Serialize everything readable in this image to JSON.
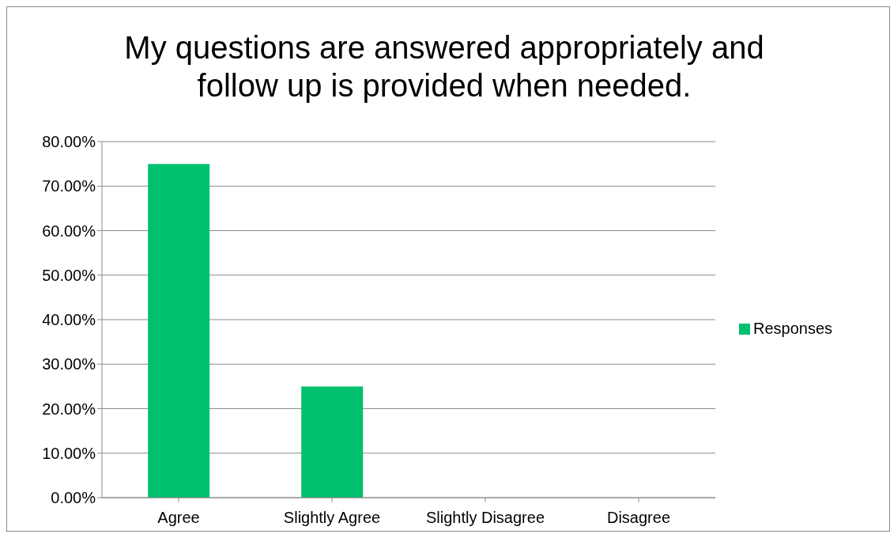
{
  "chart_data": {
    "type": "bar",
    "title": "My questions are answered appropriately and follow up is provided when needed.",
    "categories": [
      "Agree",
      "Slightly Agree",
      "Slightly Disagree",
      "Disagree"
    ],
    "series": [
      {
        "name": "Responses",
        "color": "#00c06f",
        "values": [
          75,
          25,
          0,
          0
        ]
      }
    ],
    "ylim": [
      0,
      80
    ],
    "yticks": [
      {
        "value": 0,
        "label": "0.00%"
      },
      {
        "value": 10,
        "label": "10.00%"
      },
      {
        "value": 20,
        "label": "20.00%"
      },
      {
        "value": 30,
        "label": "30.00%"
      },
      {
        "value": 40,
        "label": "40.00%"
      },
      {
        "value": 50,
        "label": "50.00%"
      },
      {
        "value": 60,
        "label": "60.00%"
      },
      {
        "value": 70,
        "label": "70.00%"
      },
      {
        "value": 80,
        "label": "80.00%"
      }
    ],
    "grid": "y",
    "legend": "right"
  }
}
